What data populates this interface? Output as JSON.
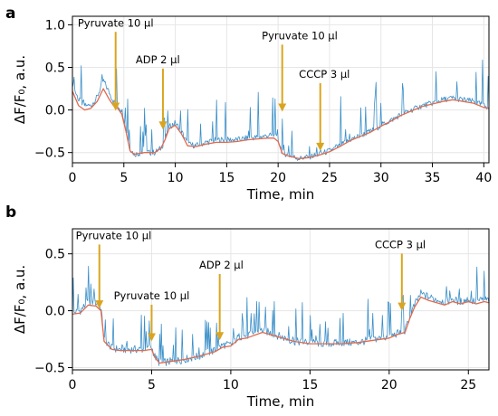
{
  "colors": {
    "raw": "#3b8fc8",
    "smooth": "#e06a4e",
    "arrow": "#d9a520",
    "grid": "#e6e6e6"
  },
  "chart_data": [
    {
      "type": "line",
      "panel": "a",
      "xlabel": "Time, min",
      "ylabel": "ΔF/F₀, a.u.",
      "xlim": [
        0,
        40.5
      ],
      "ylim": [
        -0.62,
        1.1
      ],
      "xticks": [
        0,
        5,
        10,
        15,
        20,
        25,
        30,
        35,
        40
      ],
      "yticks": [
        -0.5,
        0.0,
        0.5,
        1.0
      ],
      "ytick_labels": [
        "−0.5",
        "0.0",
        "0.5",
        "1.0"
      ],
      "grid": true,
      "series": [
        {
          "role": "raw trace",
          "x": [
            0,
            0.6,
            1.2,
            1.8,
            2.4,
            3.0,
            3.6,
            4.0,
            4.4,
            4.8,
            5.2,
            5.6,
            6.0,
            7.0,
            8.0,
            8.6,
            9.0,
            9.4,
            10.0,
            10.6,
            11.2,
            12.0,
            13.0,
            14.0,
            15.0,
            16.0,
            17.0,
            18.0,
            19.0,
            19.6,
            20.0,
            20.4,
            21.0,
            22.0,
            23.0,
            24.0,
            25.0,
            26.0,
            27.0,
            28.0,
            29.0,
            30.0,
            31.0,
            32.0,
            33.0,
            34.0,
            35.0,
            36.0,
            37.0,
            38.0,
            39.0,
            40.0,
            40.5
          ],
          "y": [
            0.3,
            0.12,
            0.05,
            0.05,
            0.15,
            0.35,
            0.2,
            0.1,
            0.05,
            0.0,
            -0.2,
            -0.45,
            -0.52,
            -0.5,
            -0.5,
            -0.45,
            -0.35,
            -0.2,
            -0.15,
            -0.25,
            -0.4,
            -0.42,
            -0.38,
            -0.35,
            -0.35,
            -0.35,
            -0.33,
            -0.32,
            -0.3,
            -0.3,
            -0.35,
            -0.5,
            -0.53,
            -0.57,
            -0.55,
            -0.52,
            -0.48,
            -0.42,
            -0.35,
            -0.3,
            -0.25,
            -0.18,
            -0.12,
            -0.05,
            0.0,
            0.05,
            0.08,
            0.12,
            0.14,
            0.12,
            0.1,
            0.05,
            0.03
          ]
        },
        {
          "role": "smoothed trace",
          "x": [
            0,
            0.6,
            1.2,
            1.8,
            2.4,
            3.0,
            3.6,
            4.0,
            4.4,
            4.8,
            5.2,
            5.6,
            6.0,
            7.0,
            8.0,
            8.6,
            9.0,
            9.4,
            10.0,
            10.6,
            11.2,
            12.0,
            13.0,
            14.0,
            15.0,
            16.0,
            17.0,
            18.0,
            19.0,
            19.6,
            20.0,
            20.4,
            21.0,
            22.0,
            23.0,
            24.0,
            25.0,
            26.0,
            27.0,
            28.0,
            29.0,
            30.0,
            31.0,
            32.0,
            33.0,
            34.0,
            35.0,
            36.0,
            37.0,
            38.0,
            39.0,
            40.0,
            40.5
          ],
          "y": [
            0.22,
            0.05,
            0.0,
            0.02,
            0.1,
            0.25,
            0.12,
            0.05,
            0.02,
            -0.05,
            -0.25,
            -0.48,
            -0.52,
            -0.5,
            -0.5,
            -0.45,
            -0.35,
            -0.22,
            -0.18,
            -0.28,
            -0.42,
            -0.43,
            -0.4,
            -0.38,
            -0.38,
            -0.37,
            -0.35,
            -0.34,
            -0.33,
            -0.33,
            -0.37,
            -0.51,
            -0.54,
            -0.57,
            -0.56,
            -0.53,
            -0.49,
            -0.43,
            -0.36,
            -0.31,
            -0.26,
            -0.19,
            -0.13,
            -0.06,
            -0.01,
            0.04,
            0.07,
            0.1,
            0.12,
            0.1,
            0.08,
            0.03,
            0.02
          ]
        }
      ],
      "annotations": [
        {
          "text": "Pyruvate 10 μl",
          "x": 4.2,
          "y": -0.01,
          "text_x": 4.2,
          "text_y": 0.98
        },
        {
          "text": "ADP 2 μl",
          "x": 8.8,
          "y": -0.23,
          "text_x": 8.3,
          "text_y": 0.55
        },
        {
          "text": "Pyruvate 10 μl",
          "x": 20.4,
          "y": -0.02,
          "text_x": 22.1,
          "text_y": 0.83
        },
        {
          "text": "CCCP 3 μl",
          "x": 24.1,
          "y": -0.48,
          "text_x": 24.5,
          "text_y": 0.38
        }
      ]
    },
    {
      "type": "line",
      "panel": "b",
      "xlabel": "Time, min",
      "ylabel": "ΔF/F₀, a.u.",
      "xlim": [
        0,
        26.3
      ],
      "ylim": [
        -0.52,
        0.72
      ],
      "xticks": [
        0,
        5,
        10,
        15,
        20,
        25
      ],
      "yticks": [
        -0.5,
        0.0,
        0.5
      ],
      "ytick_labels": [
        "−0.5",
        "0.0",
        "0.5"
      ],
      "grid": true,
      "series": [
        {
          "role": "raw trace",
          "x": [
            0,
            0.5,
            1.0,
            1.5,
            1.8,
            2.0,
            2.5,
            3.0,
            4.0,
            4.5,
            5.0,
            5.2,
            5.5,
            6.0,
            7.0,
            8.0,
            8.5,
            9.0,
            9.5,
            10.0,
            10.5,
            11.0,
            12.0,
            13.0,
            14.0,
            15.0,
            16.0,
            17.0,
            18.0,
            19.0,
            20.0,
            20.5,
            21.0,
            21.3,
            21.6,
            22.0,
            22.5,
            23.0,
            23.5,
            24.0,
            24.5,
            25.0,
            25.5,
            26.0,
            26.3
          ],
          "y": [
            -0.02,
            0.0,
            0.08,
            0.07,
            0.03,
            -0.25,
            -0.33,
            -0.34,
            -0.34,
            -0.34,
            -0.32,
            -0.4,
            -0.46,
            -0.45,
            -0.43,
            -0.4,
            -0.37,
            -0.35,
            -0.3,
            -0.3,
            -0.23,
            -0.22,
            -0.17,
            -0.22,
            -0.27,
            -0.28,
            -0.29,
            -0.28,
            -0.28,
            -0.25,
            -0.23,
            -0.2,
            -0.18,
            -0.05,
            0.05,
            0.15,
            0.12,
            0.1,
            0.08,
            0.1,
            0.08,
            0.1,
            0.08,
            0.1,
            0.09
          ]
        },
        {
          "role": "smoothed trace",
          "x": [
            0,
            0.5,
            1.0,
            1.5,
            1.8,
            2.0,
            2.5,
            3.0,
            4.0,
            4.5,
            5.0,
            5.2,
            5.5,
            6.0,
            7.0,
            8.0,
            8.5,
            9.0,
            9.5,
            10.0,
            10.5,
            11.0,
            12.0,
            13.0,
            14.0,
            15.0,
            16.0,
            17.0,
            18.0,
            19.0,
            20.0,
            20.5,
            21.0,
            21.3,
            21.6,
            22.0,
            22.5,
            23.0,
            23.5,
            24.0,
            24.5,
            25.0,
            25.5,
            26.0,
            26.3
          ],
          "y": [
            -0.03,
            -0.02,
            0.05,
            0.04,
            0.0,
            -0.27,
            -0.34,
            -0.35,
            -0.35,
            -0.35,
            -0.34,
            -0.41,
            -0.46,
            -0.45,
            -0.43,
            -0.4,
            -0.38,
            -0.36,
            -0.32,
            -0.31,
            -0.25,
            -0.24,
            -0.19,
            -0.23,
            -0.27,
            -0.29,
            -0.29,
            -0.29,
            -0.28,
            -0.26,
            -0.24,
            -0.21,
            -0.19,
            -0.07,
            0.03,
            0.12,
            0.09,
            0.07,
            0.05,
            0.08,
            0.06,
            0.08,
            0.06,
            0.08,
            0.07
          ]
        }
      ],
      "annotations": [
        {
          "text": "Pyruvate 10 μl",
          "x": 1.7,
          "y": 0.02,
          "text_x": 2.6,
          "text_y": 0.63
        },
        {
          "text": "Pyruvate 10 μl",
          "x": 5.0,
          "y": -0.27,
          "text_x": 5.0,
          "text_y": 0.1
        },
        {
          "text": "ADP 2 μl",
          "x": 9.3,
          "y": -0.26,
          "text_x": 9.4,
          "text_y": 0.37
        },
        {
          "text": "CCCP 3 μl",
          "x": 20.8,
          "y": 0.0,
          "text_x": 20.7,
          "text_y": 0.55
        }
      ]
    }
  ]
}
